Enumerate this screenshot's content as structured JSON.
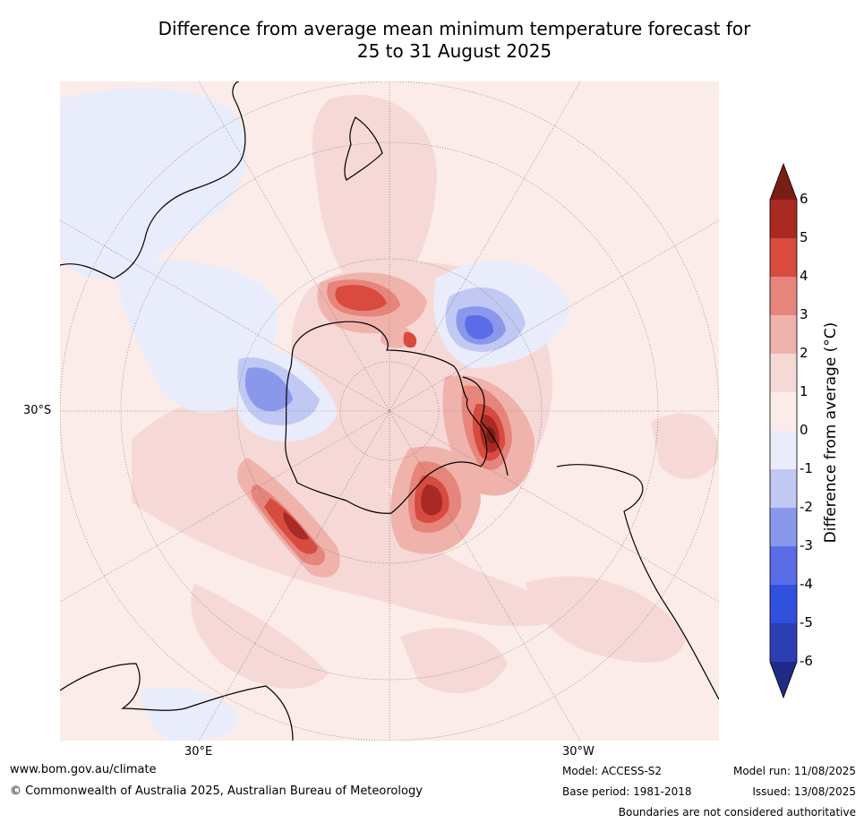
{
  "title": {
    "line1": "Difference from average mean minimum temperature forecast for",
    "line2": "25 to 31 August 2025"
  },
  "map": {
    "projection": "south-polar-stereographic",
    "lat_label": "30°S",
    "lon_labels": [
      "30°E",
      "30°W"
    ]
  },
  "colorbar": {
    "label": "Difference from average (°C)",
    "ticks": [
      "6",
      "5",
      "4",
      "3",
      "2",
      "1",
      "0",
      "-1",
      "-2",
      "-3",
      "-4",
      "-5",
      "-6"
    ],
    "colors": [
      "#7a1d14",
      "#a92a22",
      "#d94b3f",
      "#e6857b",
      "#efb3ac",
      "#f6d9d6",
      "#fbece9",
      "#e9ecfb",
      "#c1c8f4",
      "#8a98ec",
      "#5b6de6",
      "#3150de",
      "#2b3fb2",
      "#1f2b86"
    ]
  },
  "footer": {
    "website": "www.bom.gov.au/climate",
    "copyright": "© Commonwealth of Australia 2025, Australian Bureau of Meteorology",
    "model": "Model: ACCESS-S2",
    "base_period": "Base period: 1981-2018",
    "model_run": "Model run: 11/08/2025",
    "issued": "Issued: 13/08/2025",
    "disclaimer": "Boundaries are not considered authoritative"
  }
}
